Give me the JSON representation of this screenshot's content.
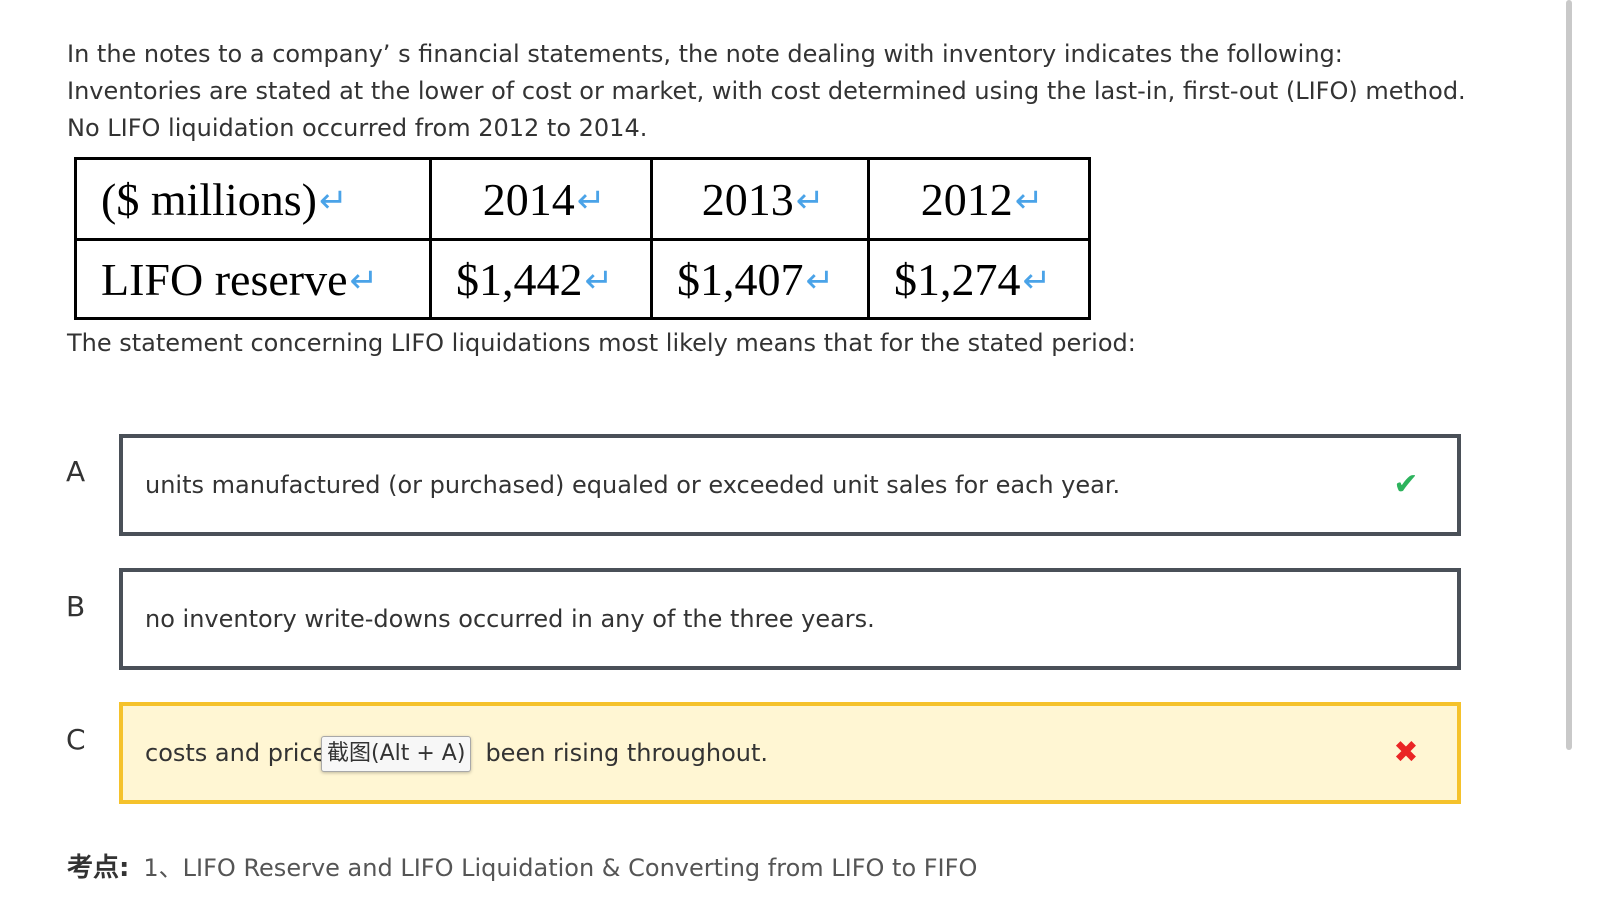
{
  "question": {
    "stem_lines": [
      "In the notes to a company’ s financial statements, the note dealing with inventory indicates the following:",
      "Inventories are stated at the lower of cost or market, with cost determined using the last-in, first-out (LIFO) method.",
      "No LIFO liquidation occurred from 2012 to 2014."
    ],
    "table": {
      "headers": [
        "($ millions)",
        "2014",
        "2013",
        "2012"
      ],
      "row": [
        "LIFO reserve",
        "$1,442",
        "$1,407",
        "$1,274"
      ],
      "return_mark": "↵"
    },
    "prompt": "The statement concerning LIFO liquidations most likely means that for the stated period:"
  },
  "options": [
    {
      "letter": "A",
      "text": "units manufactured (or purchased) equaled or exceeded unit sales for each year.",
      "status": "correct",
      "mark_icon": "check-icon"
    },
    {
      "letter": "B",
      "text": "no inventory write-downs occurred in any of the three years.",
      "status": "none"
    },
    {
      "letter": "C",
      "text": "costs and prices have been rising throughout.",
      "visible_before": "costs and price",
      "visible_after": "been rising throughout.",
      "status": "wrong",
      "mark_icon": "cross-icon"
    }
  ],
  "tooltip": {
    "text": "截图(Alt + A)"
  },
  "knowledge": {
    "label": "考点:",
    "text": "1、LIFO Reserve and LIFO Liquidation & Converting from LIFO to FIFO"
  },
  "colors": {
    "option_border": "#4a5058",
    "wrong_border": "#f5c22b",
    "wrong_bg": "#fff6d3",
    "check": "#2db35d",
    "cross": "#ea2525"
  }
}
